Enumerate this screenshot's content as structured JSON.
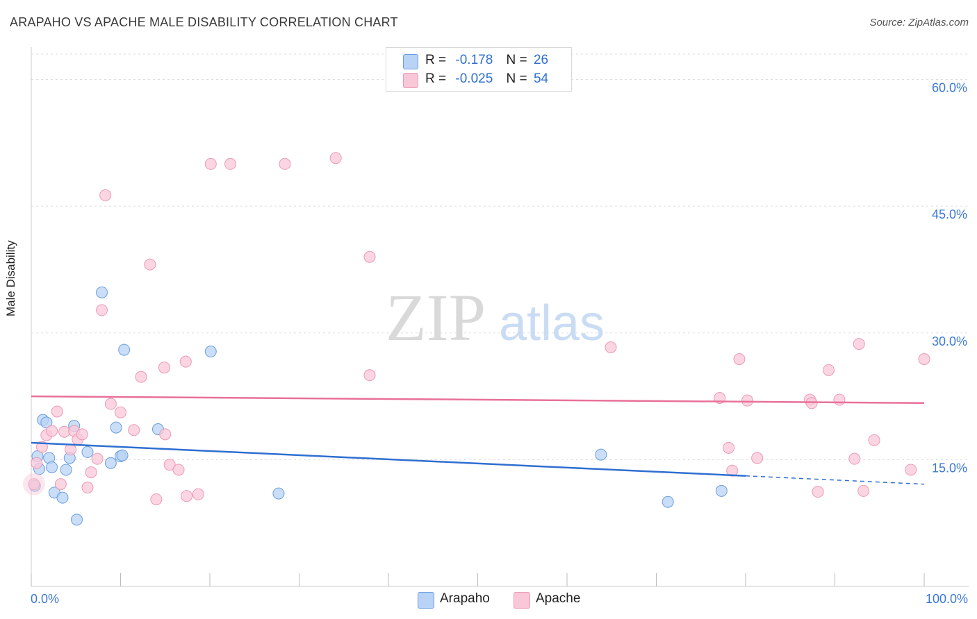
{
  "title": "ARAPAHO VS APACHE MALE DISABILITY CORRELATION CHART",
  "source": "Source: ZipAtlas.com",
  "watermark": {
    "part1": "ZIP",
    "part2": "atlas"
  },
  "colors": {
    "arapaho_fill": "#b8d3f5",
    "arapaho_stroke": "#6a9ee0",
    "arapaho_line": "#2f6fd0",
    "apache_fill": "#f9c8d8",
    "apache_stroke": "#ec9ab4",
    "apache_line": "#e8709a",
    "axis_text": "#3b78d8",
    "grid": "#dddddd"
  },
  "legend": {
    "rows": [
      {
        "r_label": "R =",
        "r_value": "-0.178",
        "n_label": "N =",
        "n_value": "26"
      },
      {
        "r_label": "R =",
        "r_value": "-0.025",
        "n_label": "N =",
        "n_value": "54"
      }
    ]
  },
  "chart_data": {
    "type": "scatter",
    "title": "ARAPAHO VS APACHE MALE DISABILITY CORRELATION CHART",
    "xlabel": "",
    "ylabel": "Male Disability",
    "xlim": [
      0,
      100
    ],
    "ylim": [
      0,
      63
    ],
    "x_tick_labels": [
      "0.0%",
      "100.0%"
    ],
    "y_ticks": [
      15,
      30,
      45,
      60
    ],
    "y_tick_labels": [
      "15.0%",
      "30.0%",
      "45.0%",
      "60.0%"
    ],
    "grid": true,
    "series": [
      {
        "name": "Arapaho",
        "r": -0.178,
        "n": 26,
        "trend": {
          "y_at_0": 17.0,
          "y_at_100": 12.1,
          "solid_until": 80
        },
        "points": [
          [
            0.4,
            11.9
          ],
          [
            0.7,
            15.4
          ],
          [
            0.9,
            13.9
          ],
          [
            1.3,
            19.7
          ],
          [
            1.7,
            19.4
          ],
          [
            2.0,
            15.2
          ],
          [
            2.3,
            14.1
          ],
          [
            2.6,
            11.1
          ],
          [
            3.5,
            10.5
          ],
          [
            3.9,
            13.8
          ],
          [
            4.3,
            15.2
          ],
          [
            4.8,
            19.0
          ],
          [
            5.1,
            7.9
          ],
          [
            6.3,
            15.9
          ],
          [
            7.9,
            34.8
          ],
          [
            8.9,
            14.6
          ],
          [
            9.5,
            18.8
          ],
          [
            10.0,
            15.4
          ],
          [
            10.2,
            15.5
          ],
          [
            10.4,
            28.0
          ],
          [
            14.2,
            18.6
          ],
          [
            20.1,
            27.8
          ],
          [
            27.7,
            11.0
          ],
          [
            63.8,
            15.6
          ],
          [
            71.3,
            10.0
          ],
          [
            77.3,
            11.3
          ]
        ]
      },
      {
        "name": "Apache",
        "r": -0.025,
        "n": 54,
        "trend": {
          "y_at_0": 22.5,
          "y_at_100": 21.7
        },
        "points": [
          [
            0.3,
            12.1
          ],
          [
            0.6,
            14.6
          ],
          [
            1.2,
            16.5
          ],
          [
            1.7,
            17.9
          ],
          [
            2.3,
            18.4
          ],
          [
            2.9,
            20.7
          ],
          [
            3.3,
            12.1
          ],
          [
            3.7,
            18.3
          ],
          [
            4.4,
            16.2
          ],
          [
            4.8,
            18.4
          ],
          [
            5.2,
            17.4
          ],
          [
            5.7,
            18.0
          ],
          [
            6.3,
            11.7
          ],
          [
            6.7,
            13.5
          ],
          [
            7.4,
            15.1
          ],
          [
            7.9,
            32.7
          ],
          [
            8.3,
            46.3
          ],
          [
            8.9,
            21.6
          ],
          [
            10.0,
            20.6
          ],
          [
            11.5,
            18.5
          ],
          [
            12.3,
            24.8
          ],
          [
            13.3,
            38.1
          ],
          [
            14.0,
            10.3
          ],
          [
            14.9,
            25.9
          ],
          [
            15.5,
            14.4
          ],
          [
            16.5,
            13.8
          ],
          [
            17.3,
            26.6
          ],
          [
            17.4,
            10.7
          ],
          [
            18.7,
            10.9
          ],
          [
            20.1,
            50.0
          ],
          [
            22.3,
            50.0
          ],
          [
            28.4,
            50.0
          ],
          [
            34.1,
            50.7
          ],
          [
            37.9,
            25.0
          ],
          [
            37.9,
            39.0
          ],
          [
            64.9,
            28.3
          ],
          [
            77.1,
            22.3
          ],
          [
            78.5,
            13.7
          ],
          [
            79.3,
            26.9
          ],
          [
            78.1,
            16.4
          ],
          [
            80.2,
            22.0
          ],
          [
            81.3,
            15.2
          ],
          [
            87.2,
            22.1
          ],
          [
            87.4,
            21.7
          ],
          [
            88.1,
            11.2
          ],
          [
            89.3,
            25.6
          ],
          [
            90.5,
            22.1
          ],
          [
            92.2,
            15.1
          ],
          [
            92.7,
            28.7
          ],
          [
            93.2,
            11.3
          ],
          [
            94.4,
            17.3
          ],
          [
            98.5,
            13.8
          ],
          [
            100.0,
            26.9
          ],
          [
            15.0,
            18.0
          ]
        ]
      }
    ]
  },
  "bottom_legend": [
    {
      "label": "Arapaho"
    },
    {
      "label": "Apache"
    }
  ]
}
